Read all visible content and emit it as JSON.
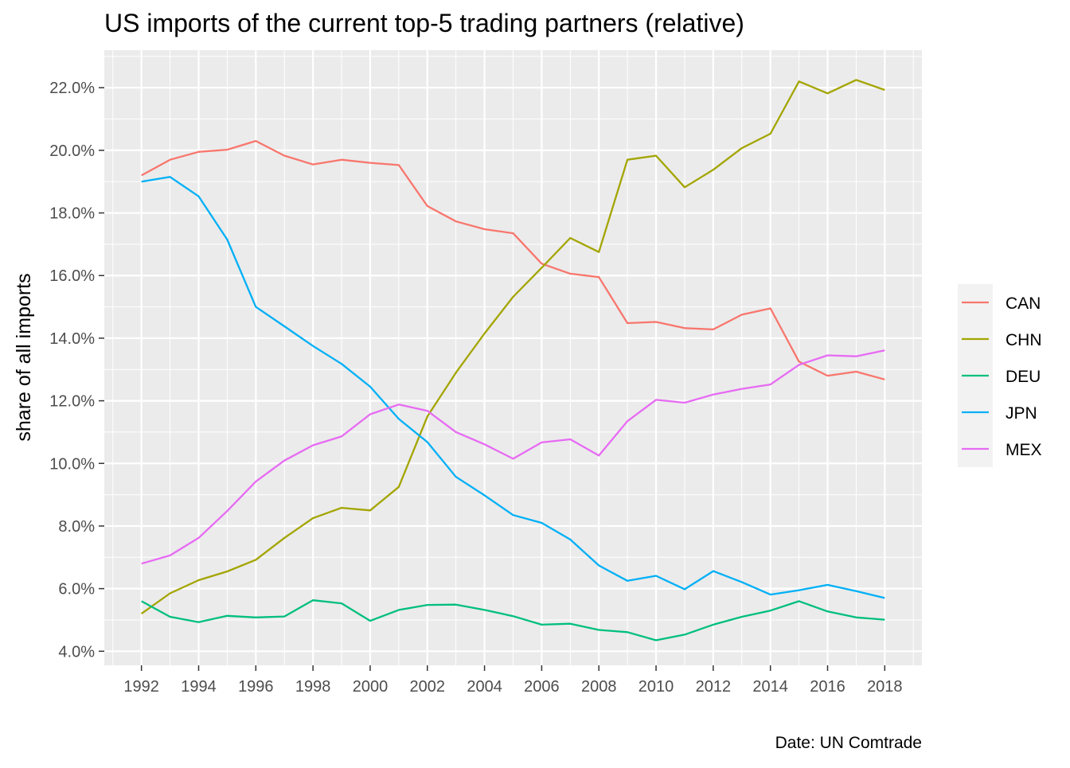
{
  "chart_data": {
    "type": "line",
    "title": "US imports of the current top-5 trading partners (relative)",
    "xlabel": "",
    "ylabel": "share of all imports",
    "caption": "Date: UN Comtrade",
    "xlim": [
      1990.7,
      2019.3
    ],
    "ylim": [
      3.55,
      23.2
    ],
    "x_ticks": [
      "1992",
      "1994",
      "1996",
      "1998",
      "2000",
      "2002",
      "2004",
      "2006",
      "2008",
      "2010",
      "2012",
      "2014",
      "2016",
      "2018"
    ],
    "y_ticks": [
      "4.0%",
      "6.0%",
      "8.0%",
      "10.0%",
      "12.0%",
      "14.0%",
      "16.0%",
      "18.0%",
      "20.0%",
      "22.0%"
    ],
    "grid": true,
    "legend_position": "right",
    "x": [
      1992,
      1993,
      1994,
      1995,
      1996,
      1997,
      1998,
      1999,
      2000,
      2001,
      2002,
      2003,
      2004,
      2005,
      2006,
      2007,
      2008,
      2009,
      2010,
      2011,
      2012,
      2013,
      2014,
      2015,
      2016,
      2017,
      2018
    ],
    "series": [
      {
        "name": "CAN",
        "color": "#F8766D",
        "values": [
          19.2,
          19.7,
          19.95,
          20.02,
          20.3,
          19.83,
          19.55,
          19.7,
          19.6,
          19.53,
          18.22,
          17.73,
          17.48,
          17.35,
          16.38,
          16.06,
          15.95,
          14.48,
          14.52,
          14.32,
          14.28,
          14.75,
          14.95,
          13.25,
          12.8,
          12.93,
          12.68
        ]
      },
      {
        "name": "CHN",
        "color": "#A3A500",
        "values": [
          5.2,
          5.85,
          6.27,
          6.55,
          6.92,
          7.62,
          8.25,
          8.58,
          8.5,
          9.25,
          11.5,
          12.9,
          14.15,
          15.32,
          16.25,
          17.2,
          16.75,
          19.7,
          19.83,
          18.82,
          19.38,
          20.07,
          20.53,
          22.2,
          21.82,
          22.25,
          21.93
        ]
      },
      {
        "name": "DEU",
        "color": "#00BF7D",
        "values": [
          5.6,
          5.1,
          4.93,
          5.13,
          5.08,
          5.11,
          5.63,
          5.53,
          4.97,
          5.32,
          5.48,
          5.49,
          5.32,
          5.12,
          4.85,
          4.88,
          4.68,
          4.61,
          4.35,
          4.53,
          4.85,
          5.1,
          5.3,
          5.6,
          5.27,
          5.08,
          5.01
        ]
      },
      {
        "name": "JPN",
        "color": "#00B0F6",
        "values": [
          19.0,
          19.15,
          18.53,
          17.15,
          15.0,
          14.38,
          13.75,
          13.18,
          12.45,
          11.42,
          10.68,
          9.57,
          8.98,
          8.35,
          8.1,
          7.57,
          6.74,
          6.25,
          6.41,
          5.98,
          6.56,
          6.21,
          5.81,
          5.95,
          6.12,
          5.92,
          5.7
        ]
      },
      {
        "name": "MEX",
        "color": "#E76BF3",
        "values": [
          6.8,
          7.06,
          7.62,
          8.48,
          9.42,
          10.09,
          10.58,
          10.86,
          11.57,
          11.88,
          11.68,
          11.0,
          10.61,
          10.15,
          10.67,
          10.77,
          10.25,
          11.35,
          12.03,
          11.94,
          12.2,
          12.38,
          12.52,
          13.15,
          13.45,
          13.42,
          13.61
        ]
      }
    ]
  }
}
